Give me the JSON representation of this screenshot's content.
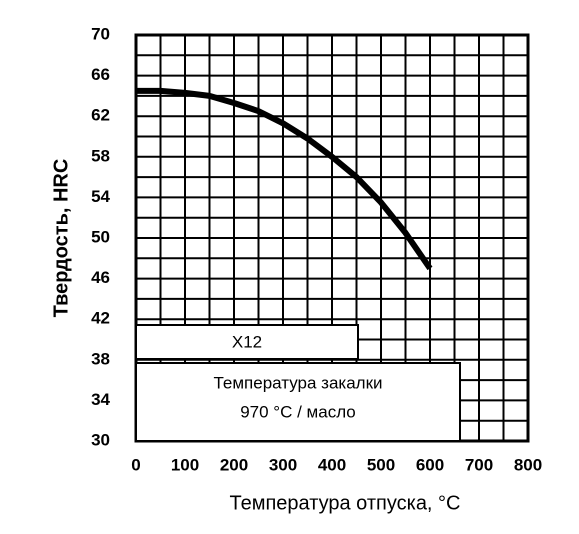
{
  "chart_data": {
    "type": "line",
    "xlabel": "Температура отпуска, °C",
    "ylabel": "Твердость, HRC",
    "x": [
      0,
      50,
      100,
      150,
      200,
      250,
      300,
      350,
      400,
      450,
      500,
      550,
      600
    ],
    "series": [
      {
        "name": "X12",
        "color": "#000000",
        "values": [
          64.5,
          64.5,
          64.3,
          64.0,
          63.3,
          62.5,
          61.3,
          59.8,
          58.0,
          56.0,
          53.5,
          50.5,
          47.0
        ]
      }
    ],
    "annotations": [
      "Температура закалки",
      "970 °C / масло"
    ],
    "xlim": [
      0,
      800
    ],
    "xticks": [
      0,
      100,
      200,
      300,
      400,
      500,
      600,
      700,
      800
    ],
    "ylim": [
      30,
      70
    ],
    "yticks": [
      30,
      34,
      38,
      42,
      46,
      50,
      54,
      58,
      62,
      66,
      70
    ],
    "grid": true
  }
}
